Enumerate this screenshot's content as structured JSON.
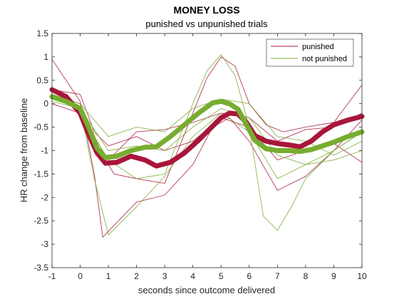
{
  "chart_data": {
    "type": "line",
    "title": "MONEY LOSS",
    "subtitle": "punished vs unpunished trials",
    "xlabel": "seconds since outcome delivered",
    "ylabel": "HR change from baseline",
    "xlim": [
      -1,
      10
    ],
    "ylim": [
      -3.5,
      1.5
    ],
    "xticks": [
      -1,
      0,
      1,
      2,
      3,
      4,
      5,
      6,
      7,
      8,
      9,
      10
    ],
    "yticks": [
      -3.5,
      -3,
      -2.5,
      -2,
      -1.5,
      -1,
      -0.5,
      0,
      0.5,
      1,
      1.5
    ],
    "grid": false,
    "legend_position": "top-right",
    "colors": {
      "punished": "#a8163a",
      "not_punished": "#77ac30",
      "axis": "#262626"
    },
    "legend": [
      {
        "name": "punished",
        "color": "#a8163a"
      },
      {
        "name": "not punished",
        "color": "#77ac30"
      }
    ],
    "series": [
      {
        "name": "punished",
        "role": "mean",
        "color": "#a8163a",
        "x": [
          -1,
          -0.5,
          0,
          0.3,
          0.6,
          0.9,
          1.3,
          1.8,
          2.3,
          2.7,
          3.2,
          3.7,
          4.2,
          4.7,
          5.0,
          5.3,
          5.6,
          5.9,
          6.2,
          6.6,
          7.0,
          7.4,
          7.8,
          8.2,
          8.6,
          9.0,
          9.5,
          10
        ],
        "y": [
          0.3,
          0.15,
          -0.2,
          -0.65,
          -1.05,
          -1.27,
          -1.25,
          -1.12,
          -1.2,
          -1.33,
          -1.25,
          -1.05,
          -0.78,
          -0.48,
          -0.3,
          -0.2,
          -0.22,
          -0.4,
          -0.68,
          -0.8,
          -0.85,
          -0.88,
          -0.92,
          -0.8,
          -0.6,
          -0.45,
          -0.35,
          -0.27
        ]
      },
      {
        "name": "not punished",
        "role": "mean",
        "color": "#77ac30",
        "x": [
          -1,
          -0.5,
          0,
          0.3,
          0.6,
          0.9,
          1.3,
          1.8,
          2.3,
          2.7,
          3.2,
          3.7,
          4.2,
          4.7,
          5.0,
          5.3,
          5.6,
          5.9,
          6.2,
          6.6,
          7.0,
          7.4,
          7.8,
          8.2,
          8.6,
          9.0,
          9.5,
          10
        ],
        "y": [
          0.15,
          0.05,
          -0.1,
          -0.5,
          -0.95,
          -1.15,
          -1.12,
          -1.0,
          -0.93,
          -0.92,
          -0.7,
          -0.45,
          -0.2,
          0.02,
          0.05,
          0.0,
          -0.12,
          -0.45,
          -0.78,
          -0.96,
          -1.0,
          -1.0,
          -1.02,
          -0.98,
          -0.9,
          -0.82,
          -0.7,
          -0.6
        ]
      },
      {
        "name": "punished",
        "role": "trial",
        "color": "#a8163a",
        "x": [
          -1,
          0,
          0.5,
          0.8,
          1.2,
          2,
          3,
          4,
          4.7,
          5.3,
          6,
          7,
          8,
          9,
          10
        ],
        "y": [
          0.95,
          0.05,
          -1.5,
          -2.85,
          -2.6,
          -2.1,
          -1.95,
          -1.3,
          -0.5,
          -0.3,
          -0.8,
          -1.85,
          -1.55,
          -1.0,
          -0.35
        ]
      },
      {
        "name": "punished",
        "role": "trial",
        "color": "#a8163a",
        "x": [
          -1,
          0,
          0.6,
          1.2,
          2,
          3,
          4,
          4.5,
          5,
          5.5,
          6,
          6.6,
          7.2,
          8,
          9,
          10
        ],
        "y": [
          0.2,
          0.0,
          -0.9,
          -1.5,
          -1.6,
          -1.7,
          -0.2,
          0.55,
          1.0,
          0.8,
          0.0,
          -0.45,
          -0.6,
          -0.5,
          -0.4,
          0.4
        ]
      },
      {
        "name": "punished",
        "role": "trial",
        "color": "#a8163a",
        "x": [
          -1,
          0,
          0.5,
          1,
          2,
          3,
          4,
          5,
          6,
          7,
          8,
          9,
          10
        ],
        "y": [
          0.3,
          0.2,
          -0.6,
          -0.9,
          -0.7,
          -1.0,
          -0.8,
          -0.3,
          -0.5,
          -1.2,
          -1.0,
          -0.85,
          -1.25
        ]
      },
      {
        "name": "punished",
        "role": "trial",
        "color": "#a8163a",
        "x": [
          -1,
          0,
          1,
          2,
          3,
          4,
          5,
          6,
          7,
          8,
          9,
          10
        ],
        "y": [
          0.0,
          -0.2,
          -1.2,
          -0.6,
          -0.55,
          -0.4,
          -0.2,
          -0.3,
          -0.8,
          -0.55,
          -0.5,
          -0.2
        ]
      },
      {
        "name": "not punished",
        "role": "trial",
        "color": "#77ac30",
        "x": [
          -1,
          0,
          0.5,
          1,
          2,
          3,
          4,
          5,
          6,
          7,
          8,
          9,
          10
        ],
        "y": [
          0.15,
          -0.1,
          -1.6,
          -2.8,
          -2.2,
          -1.55,
          -0.7,
          -0.2,
          -0.6,
          -1.6,
          -1.3,
          -1.0,
          -0.6
        ]
      },
      {
        "name": "not punished",
        "role": "trial",
        "color": "#77ac30",
        "x": [
          -1,
          0,
          0.5,
          1,
          2,
          3,
          4,
          4.5,
          5,
          5.5,
          6,
          6.5,
          7,
          7.5,
          8,
          9,
          10
        ],
        "y": [
          0.05,
          -0.1,
          -0.7,
          -1.2,
          -1.6,
          -1.5,
          0.0,
          0.7,
          1.05,
          0.6,
          -0.5,
          -2.4,
          -2.7,
          -2.2,
          -1.6,
          -1.0,
          -0.6
        ]
      },
      {
        "name": "not punished",
        "role": "trial",
        "color": "#77ac30",
        "x": [
          -1,
          0,
          1,
          2,
          3,
          4,
          5,
          6,
          7,
          8,
          9,
          10
        ],
        "y": [
          0.2,
          0.0,
          -0.7,
          -0.5,
          -0.6,
          -0.1,
          0.1,
          0.0,
          -0.7,
          -0.8,
          -1.1,
          -0.8
        ]
      },
      {
        "name": "not punished",
        "role": "trial",
        "color": "#77ac30",
        "x": [
          -1,
          0,
          1,
          2,
          3,
          4,
          5,
          6,
          7,
          8,
          9,
          10
        ],
        "y": [
          0.1,
          -0.1,
          -1.0,
          -0.9,
          -1.0,
          -0.5,
          -0.1,
          -0.3,
          -1.1,
          -1.3,
          -1.2,
          -1.0
        ]
      }
    ]
  }
}
